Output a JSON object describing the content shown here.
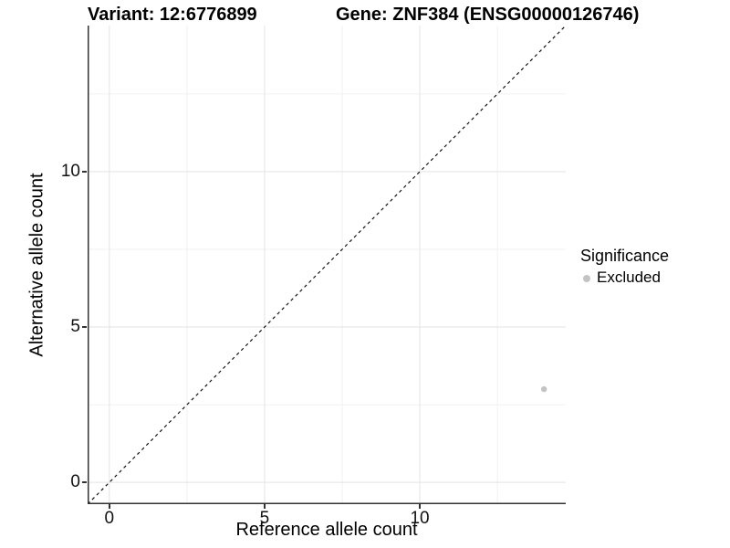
{
  "titles": {
    "variant": "Variant: 12:6776899",
    "gene": "Gene: ZNF384 (ENSG00000126746)"
  },
  "chart_data": {
    "type": "scatter",
    "title_left": "Variant: 12:6776899",
    "title_right": "Gene: ZNF384 (ENSG00000126746)",
    "xlabel": "Reference allele count",
    "ylabel": "Alternative allele count",
    "xlim": [
      -0.7,
      14.7
    ],
    "ylim": [
      -0.7,
      14.7
    ],
    "x_ticks": [
      0,
      5,
      10
    ],
    "y_ticks": [
      0,
      5,
      10
    ],
    "x_minor_ticks": [
      2.5,
      7.5,
      12.5
    ],
    "y_minor_ticks": [
      2.5,
      7.5,
      12.5
    ],
    "grid": "major+minor",
    "legend_position": "right",
    "series": [
      {
        "name": "Excluded",
        "color": "#c3c3c3",
        "points": [
          {
            "x": 14,
            "y": 3
          }
        ]
      }
    ],
    "reference_line": {
      "kind": "identity y=x",
      "line_style": "dashed",
      "color": "#000000",
      "from": [
        -0.7,
        -0.7
      ],
      "to": [
        14.7,
        14.7
      ]
    },
    "legend": {
      "title": "Significance",
      "items": [
        {
          "label": "Excluded",
          "color": "#c3c3c3",
          "marker": "circle"
        }
      ]
    }
  },
  "colors": {
    "background": "#ffffff",
    "axis_line": "#333333",
    "grid_major": "#e3e3e3",
    "grid_minor": "#f0f0f0",
    "tick_mark": "#333333",
    "point": "#c3c3c3",
    "reference_line": "#000000"
  }
}
